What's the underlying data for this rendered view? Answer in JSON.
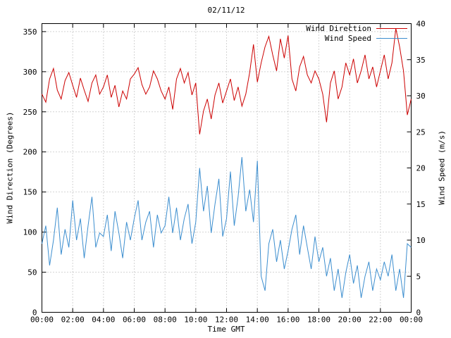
{
  "page": {
    "background": "#ffffff"
  },
  "chart_data": {
    "type": "line",
    "title": "02/11/12",
    "xlabel": "Time GMT",
    "ylabel_left": "Wind Direction (Degrees)",
    "ylabel_right": "Wind Speed (m/s)",
    "x_tick_labels": [
      "00:00",
      "02:00",
      "04:00",
      "06:00",
      "08:00",
      "10:00",
      "12:00",
      "14:00",
      "16:00",
      "18:00",
      "20:00",
      "22:00",
      "00:00"
    ],
    "x_ticks_minutes": [
      0,
      120,
      240,
      360,
      480,
      600,
      720,
      840,
      960,
      1080,
      1200,
      1320,
      1440
    ],
    "x_range_minutes": [
      0,
      1440
    ],
    "y_left": {
      "range": [
        0,
        360
      ],
      "ticks": [
        0,
        50,
        100,
        150,
        200,
        250,
        300,
        350
      ]
    },
    "y_right": {
      "range": [
        0,
        40
      ],
      "ticks": [
        0,
        5,
        10,
        15,
        20,
        25,
        30,
        35,
        40
      ]
    },
    "grid": true,
    "legend_position": "top-right",
    "x_start_minutes": 0,
    "x_step_minutes": 15,
    "series": [
      {
        "name": "Wind Direction",
        "axis": "left",
        "color": "#cc0000",
        "values": [
          272,
          262,
          291,
          304,
          277,
          266,
          289,
          299,
          283,
          268,
          292,
          277,
          263,
          286,
          296,
          272,
          281,
          296,
          268,
          283,
          256,
          276,
          266,
          291,
          297,
          305,
          284,
          272,
          281,
          301,
          291,
          276,
          266,
          281,
          253,
          291,
          304,
          286,
          299,
          271,
          286,
          222,
          251,
          266,
          241,
          271,
          286,
          261,
          276,
          291,
          264,
          281,
          257,
          272,
          299,
          334,
          287,
          311,
          331,
          344,
          321,
          301,
          341,
          317,
          345,
          291,
          276,
          306,
          319,
          296,
          286,
          301,
          291,
          272,
          237,
          286,
          301,
          266,
          281,
          311,
          296,
          316,
          286,
          301,
          321,
          291,
          306,
          281,
          301,
          321,
          291,
          311,
          354,
          331,
          301,
          246,
          266
        ]
      },
      {
        "name": "Wind Speed",
        "axis": "right",
        "color": "#3c8ecf",
        "values": [
          9.5,
          12,
          6.5,
          10,
          14.5,
          8,
          11.5,
          9,
          15.5,
          10,
          13,
          7.5,
          12,
          16,
          9,
          11,
          10.5,
          13.5,
          8.5,
          14,
          11,
          7.5,
          12.5,
          10,
          13,
          15.5,
          10,
          12.5,
          14,
          9,
          13.5,
          11,
          12,
          16,
          11,
          14.5,
          10,
          13,
          15,
          9.5,
          12.5,
          20,
          14,
          17.5,
          11,
          15,
          18.5,
          10.5,
          13,
          19.5,
          12,
          16,
          21.5,
          14,
          17,
          12.5,
          21,
          5,
          3,
          9.5,
          11.5,
          7,
          10,
          6,
          8.5,
          11.5,
          13.5,
          8,
          12,
          9,
          6,
          10.5,
          7,
          9,
          5,
          7.5,
          3,
          6,
          2,
          5.5,
          8,
          4,
          6.5,
          2,
          5,
          7,
          3,
          6,
          4.5,
          7,
          5,
          8,
          3,
          6,
          2,
          9.5,
          9
        ]
      }
    ]
  }
}
